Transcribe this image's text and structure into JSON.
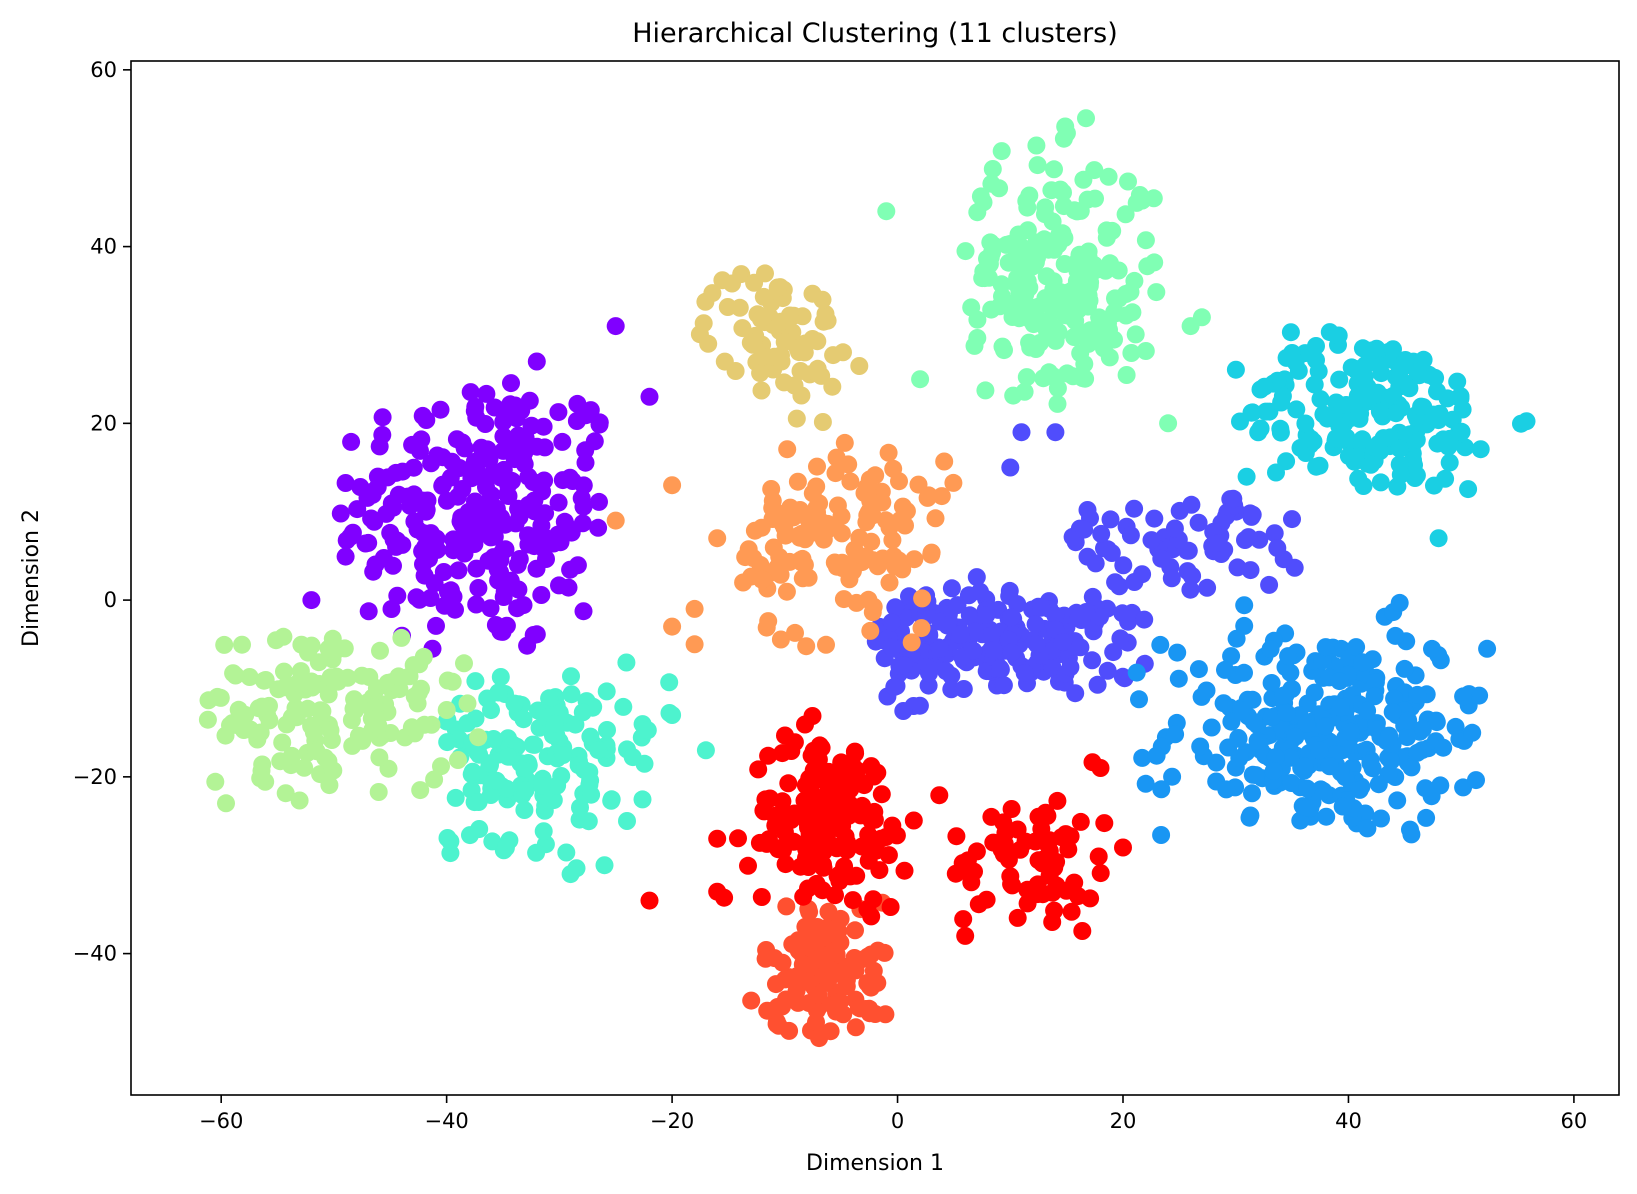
{
  "chart_data": {
    "type": "scatter",
    "title": "Hierarchical Clustering (11 clusters)",
    "xlabel": "Dimension 1",
    "ylabel": "Dimension 2",
    "xlim": [
      -68,
      64
    ],
    "ylim": [
      -56,
      61
    ],
    "xticks": [
      -60,
      -40,
      -20,
      0,
      20,
      40,
      60
    ],
    "yticks": [
      -40,
      -20,
      0,
      20,
      40,
      60
    ],
    "tick_labels_x": [
      "−60",
      "−40",
      "−20",
      "0",
      "20",
      "40",
      "60"
    ],
    "tick_labels_y": [
      "−40",
      "−20",
      "0",
      "20",
      "40",
      "60"
    ],
    "grid": false,
    "legend": "none",
    "colormap": "rainbow",
    "clusters": [
      {
        "color": "#8000ff",
        "center": [
          -37,
          10
        ],
        "spread": [
          6.5,
          8
        ],
        "count": 260,
        "bounds": [
          -50,
          -26,
          -8,
          28
        ]
      },
      {
        "color": "#504dfc",
        "center": [
          8,
          -5
        ],
        "spread": [
          8,
          3
        ],
        "count": 200,
        "bounds": [
          -2,
          22,
          -13,
          3
        ]
      },
      {
        "color": "#504dfc",
        "center": [
          25,
          7
        ],
        "spread": [
          6,
          3
        ],
        "count": 70,
        "bounds": [
          15,
          36,
          0,
          12
        ]
      },
      {
        "color": "#1996f3",
        "center": [
          38,
          -15
        ],
        "spread": [
          7,
          6
        ],
        "count": 290,
        "bounds": [
          21,
          53,
          -27,
          4
        ]
      },
      {
        "color": "#1acfe3",
        "center": [
          42,
          21
        ],
        "spread": [
          6,
          4.5
        ],
        "count": 190,
        "bounds": [
          30,
          58,
          12,
          35
        ]
      },
      {
        "color": "#4df3ce",
        "center": [
          -34,
          -17
        ],
        "spread": [
          7,
          5
        ],
        "count": 150,
        "bounds": [
          -40,
          -17,
          -31,
          -7
        ]
      },
      {
        "color": "#80ffb4",
        "center": [
          14,
          36
        ],
        "spread": [
          4.5,
          7
        ],
        "count": 220,
        "bounds": [
          6,
          23,
          22,
          55
        ]
      },
      {
        "color": "#b3f396",
        "center": [
          -50,
          -12
        ],
        "spread": [
          6,
          5
        ],
        "count": 150,
        "bounds": [
          -62,
          -35,
          -24,
          -4
        ]
      },
      {
        "color": "#e5cb72",
        "center": [
          -11,
          30
        ],
        "spread": [
          3,
          4
        ],
        "count": 80,
        "bounds": [
          -18,
          -3,
          19,
          37
        ]
      },
      {
        "color": "#ff9a54",
        "center": [
          -5,
          7
        ],
        "spread": [
          5,
          6
        ],
        "count": 140,
        "bounds": [
          -14,
          6,
          -7,
          20
        ]
      },
      {
        "color": "#ff5030",
        "center": [
          -6,
          -42
        ],
        "spread": [
          3,
          4
        ],
        "count": 110,
        "bounds": [
          -14,
          -1,
          -51,
          -33
        ]
      },
      {
        "color": "#ff0000",
        "center": [
          -6,
          -25
        ],
        "spread": [
          3.5,
          5
        ],
        "count": 160,
        "bounds": [
          -16,
          4,
          -36,
          -10
        ]
      },
      {
        "color": "#ff0000",
        "center": [
          12,
          -30
        ],
        "spread": [
          4,
          4
        ],
        "count": 70,
        "bounds": [
          5,
          20,
          -38,
          -17
        ]
      }
    ],
    "outliers": [
      {
        "color": "#8000ff",
        "x": -25,
        "y": 31
      },
      {
        "color": "#8000ff",
        "x": -22,
        "y": 23
      },
      {
        "color": "#8000ff",
        "x": -32,
        "y": 27
      },
      {
        "color": "#8000ff",
        "x": -52,
        "y": 0
      },
      {
        "color": "#504dfc",
        "x": 11,
        "y": 19
      },
      {
        "color": "#504dfc",
        "x": 14,
        "y": 19
      },
      {
        "color": "#504dfc",
        "x": 10,
        "y": 15
      },
      {
        "color": "#80ffb4",
        "x": -1,
        "y": 44
      },
      {
        "color": "#80ffb4",
        "x": 2,
        "y": 25
      },
      {
        "color": "#80ffb4",
        "x": 24,
        "y": 20
      },
      {
        "color": "#80ffb4",
        "x": 27,
        "y": 32
      },
      {
        "color": "#80ffb4",
        "x": 26,
        "y": 31
      },
      {
        "color": "#1acfe3",
        "x": 48,
        "y": 7
      },
      {
        "color": "#ff9a54",
        "x": -20,
        "y": 13
      },
      {
        "color": "#ff9a54",
        "x": -25,
        "y": 9
      },
      {
        "color": "#ff9a54",
        "x": -18,
        "y": -1
      },
      {
        "color": "#ff9a54",
        "x": -20,
        "y": -3
      },
      {
        "color": "#ff9a54",
        "x": -18,
        "y": -5
      },
      {
        "color": "#ff9a54",
        "x": -16,
        "y": 7
      },
      {
        "color": "#4df3ce",
        "x": -26,
        "y": -30
      },
      {
        "color": "#4df3ce",
        "x": -24,
        "y": -25
      },
      {
        "color": "#4df3ce",
        "x": -29,
        "y": -31
      },
      {
        "color": "#4df3ce",
        "x": -20,
        "y": -13
      },
      {
        "color": "#4df3ce",
        "x": -17,
        "y": -17
      },
      {
        "color": "#ff0000",
        "x": -22,
        "y": -34
      },
      {
        "color": "#ff0000",
        "x": -16,
        "y": -27
      },
      {
        "color": "#ff0000",
        "x": -16,
        "y": -33
      },
      {
        "color": "#ff0000",
        "x": 20,
        "y": -28
      },
      {
        "color": "#ff0000",
        "x": 18,
        "y": -19
      },
      {
        "color": "#ff0000",
        "x": 6,
        "y": -38
      }
    ]
  }
}
